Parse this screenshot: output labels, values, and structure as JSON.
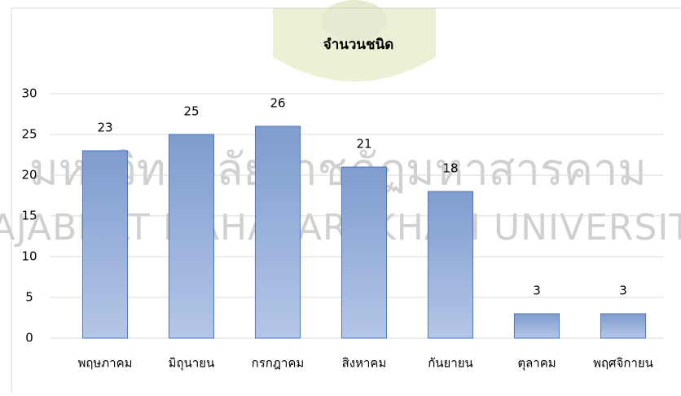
{
  "chart_data": {
    "type": "bar",
    "title": "จำนวนชนิด",
    "categories": [
      "พฤษภาคม",
      "มิถุนายน",
      "กรกฎาคม",
      "สิงหาคม",
      "กันยายน",
      "ตุลาคม",
      "พฤศจิกายน"
    ],
    "values": [
      23,
      25,
      26,
      21,
      18,
      3,
      3
    ],
    "color": "#8eaadb",
    "ylim": [
      0,
      30
    ],
    "yticks": [
      0,
      5,
      10,
      15,
      20,
      25,
      30
    ],
    "grid": true,
    "data_labels": true
  },
  "watermark": {
    "thai": "มหาวิทยาลัยราชภัฏมหาสารคาม",
    "english": "RAJABHAT MAHASARAKHAM UNIVERSITY"
  }
}
